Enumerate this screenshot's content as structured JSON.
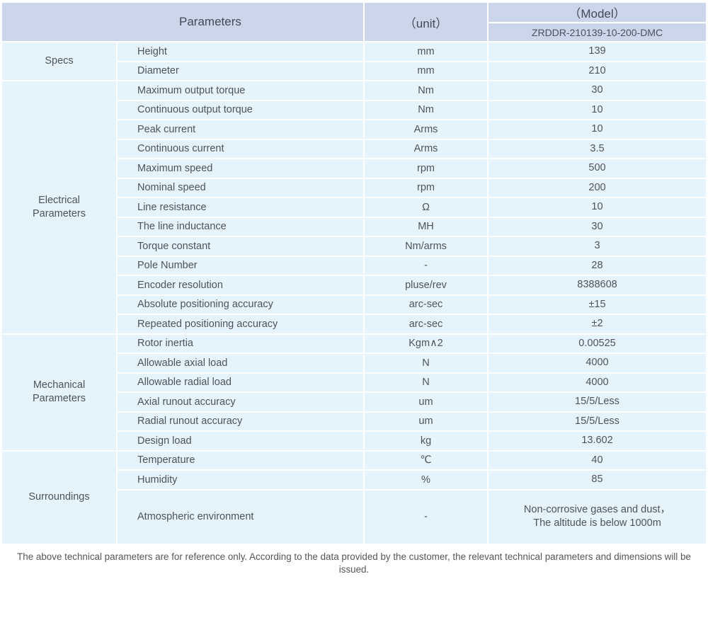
{
  "colors": {
    "header_bg": "#ccd6ea",
    "cell_bg": "#e4f3fc",
    "border": "#ffffff",
    "text": "#4d535e"
  },
  "header": {
    "parameters": "Parameters",
    "unit": "（unit）",
    "model": "（Model）",
    "model_value": "ZRDDR-210139-10-200-DMC"
  },
  "sections": [
    {
      "group": "Specs",
      "rows": [
        {
          "param": "Height",
          "unit": "mm",
          "value": "139"
        },
        {
          "param": "Diameter",
          "unit": "mm",
          "value": "210"
        }
      ]
    },
    {
      "group": "Electrical Parameters",
      "rows": [
        {
          "param": "Maximum output torque",
          "unit": "Nm",
          "value": "30"
        },
        {
          "param": "Continuous output torque",
          "unit": "Nm",
          "value": "10"
        },
        {
          "param": "Peak current",
          "unit": "Arms",
          "value": "10"
        },
        {
          "param": "Continuous current",
          "unit": "Arms",
          "value": "3.5"
        },
        {
          "param": "Maximum speed",
          "unit": "rpm",
          "value": "500"
        },
        {
          "param": "Nominal speed",
          "unit": "rpm",
          "value": "200"
        },
        {
          "param": "Line resistance",
          "unit": "Ω",
          "value": "10"
        },
        {
          "param": "The line inductance",
          "unit": "MH",
          "value": "30"
        },
        {
          "param": "Torque constant",
          "unit": "Nm/arms",
          "value": "3"
        },
        {
          "param": "Pole Number",
          "unit": "-",
          "value": "28"
        },
        {
          "param": "Encoder resolution",
          "unit": "pluse/rev",
          "value": "8388608"
        },
        {
          "param": "Absolute positioning accuracy",
          "unit": "arc-sec",
          "value": "±15"
        },
        {
          "param": "Repeated positioning accuracy",
          "unit": "arc-sec",
          "value": "±2"
        }
      ]
    },
    {
      "group": "Mechanical Parameters",
      "rows": [
        {
          "param": "Rotor inertia",
          "unit": "Kgm∧2",
          "value": "0.00525"
        },
        {
          "param": "Allowable axial load",
          "unit": "N",
          "value": "4000"
        },
        {
          "param": "Allowable radial load",
          "unit": "N",
          "value": "4000"
        },
        {
          "param": "Axial runout accuracy",
          "unit": "um",
          "value": "15/5/Less"
        },
        {
          "param": "Radial runout accuracy",
          "unit": "um",
          "value": "15/5/Less"
        },
        {
          "param": "Design load",
          "unit": "kg",
          "value": "13.602"
        }
      ]
    },
    {
      "group": "Surroundings",
      "rows": [
        {
          "param": "Temperature",
          "unit": "℃",
          "value": "40"
        },
        {
          "param": "Humidity",
          "unit": "%",
          "value": "85"
        },
        {
          "param": "Atmospheric environment",
          "unit": "-",
          "value": "Non-corrosive gases and dust，\nThe altitude is below 1000m",
          "tall": true
        }
      ]
    }
  ],
  "footer_note": "The above technical parameters are for reference only. According to the data provided by the customer, the relevant technical parameters and dimensions will be issued."
}
